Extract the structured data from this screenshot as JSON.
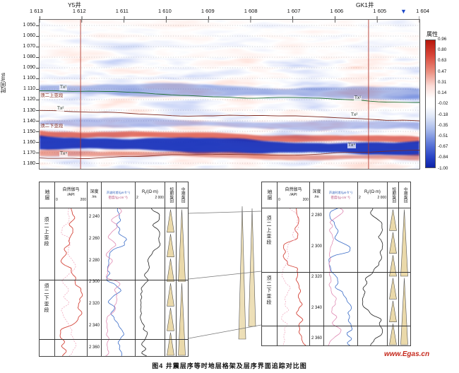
{
  "figure": {
    "caption": "图4  井震层序等时地层格架及层序界面追踪对比图",
    "watermark": "www.Egas.cn"
  },
  "colors": {
    "positive_red": "#d8402e",
    "negative_blue": "#0c27b8",
    "well_line": "#b03025",
    "horizon_green": "#1d6e32",
    "horizon_red": "#7e2a20",
    "cycle_fill": "#ead9aa",
    "watermark_red": "#c5281c"
  },
  "seismic": {
    "wells": [
      {
        "name": "Y5井"
      },
      {
        "name": "GK1井"
      }
    ],
    "top_marker_icon": "▼",
    "trace_labels": [
      "1 613",
      "1 612",
      "1 611",
      "1 610",
      "1 609",
      "1 608",
      "1 607",
      "1 606",
      "1 605",
      "1 604"
    ],
    "time_axis_label": "时间/ms",
    "time_ticks": [
      "1 050",
      "1 060",
      "1 070",
      "1 080",
      "1 090",
      "1 100",
      "1 110",
      "1 120",
      "1 130",
      "1 140",
      "1 150",
      "1 160",
      "1 170",
      "1 180"
    ],
    "horizon_labels_left": [
      "Tx¹",
      "须二上亚段",
      "Tx²",
      "须二下亚段",
      "Tx⁴"
    ],
    "horizon_labels_right": [
      "Tx¹",
      "Tx²",
      "Tx⁴"
    ],
    "colorbar": {
      "title": "属性",
      "ticks": [
        "0.96",
        "0.80",
        "0.63",
        "0.47",
        "0.31",
        "0.14",
        "-0.02",
        "-0.18",
        "-0.35",
        "-0.51",
        "-0.67",
        "-0.84",
        "-1.00"
      ]
    }
  },
  "log_panels": [
    {
      "well": "Y5",
      "strata_header": "地层",
      "strata": [
        "须二上亚段",
        "须二下亚段"
      ],
      "gr": {
        "title": "自然伽马",
        "unit": "/API",
        "min": "0",
        "max": "200"
      },
      "depth": {
        "title": "深度",
        "unit": "/m",
        "ticks": [
          "2 240",
          "2 260",
          "2 280",
          "2 300",
          "2 320",
          "2 340",
          "2 360"
        ]
      },
      "sonic": {
        "line1": "声波时差/(μs·ft⁻¹)",
        "line2": "密度/(g·cm⁻³)"
      },
      "rt": {
        "sym": "R",
        "sub": "t",
        "rest": "/(Ω·m)",
        "min": "2",
        "max": "2 000"
      },
      "short_cycle": "短期旋回",
      "medium_cycle": "中期旋回"
    },
    {
      "well": "GK1",
      "strata_header": "地层",
      "strata": [
        "须二上亚段",
        "须二下亚段"
      ],
      "gr": {
        "title": "自然伽马",
        "unit": "/API",
        "min": "0",
        "max": "200"
      },
      "depth": {
        "title": "深度",
        "unit": "/m",
        "ticks": [
          "2 280",
          "2 300",
          "2 320",
          "2 340",
          "2 360"
        ]
      },
      "sonic": {
        "line1": "声波时差/(μs·ft⁻¹)",
        "line2": "密度/(g·cm⁻³)"
      },
      "rt": {
        "sym": "R",
        "sub": "t",
        "rest": "/(Ω·m)",
        "min": "2",
        "max": "2 000"
      },
      "short_cycle": "短期旋回",
      "medium_cycle": "中期旋回"
    }
  ],
  "chart_data": [
    {
      "type": "heatmap",
      "title": "井震层序等时地层格架地震属性剖面",
      "x_tick_labels": [
        "1 613",
        "1 612",
        "1 611",
        "1 610",
        "1 609",
        "1 608",
        "1 607",
        "1 606",
        "1 605",
        "1 604"
      ],
      "ylabel": "时间/ms",
      "y_ticks": [
        1050,
        1060,
        1070,
        1080,
        1090,
        1100,
        1110,
        1120,
        1130,
        1140,
        1150,
        1160,
        1170,
        1180
      ],
      "ylim": [
        1050,
        1180
      ],
      "wells": [
        {
          "name": "Y5井",
          "x_fraction": 0.108
        },
        {
          "name": "GK1井",
          "x_fraction": 0.866
        }
      ],
      "horizons": [
        {
          "label": "Tx¹",
          "time_ms_left": 1111,
          "time_ms_right": 1123
        },
        {
          "label": "Tx²",
          "time_ms_left": 1133,
          "time_ms_right": 1141
        },
        {
          "label": "Tx⁴",
          "time_ms_left": 1174,
          "time_ms_right": 1167
        }
      ],
      "zones": [
        "须二上亚段",
        "须二下亚段"
      ],
      "colorbar": {
        "title": "属性",
        "range": [
          -1.0,
          0.96
        ],
        "ticks": [
          0.96,
          0.8,
          0.63,
          0.47,
          0.31,
          0.14,
          -0.02,
          -0.18,
          -0.35,
          -0.51,
          -0.67,
          -0.84,
          -1.0
        ],
        "palette": "red-white-blue"
      },
      "grid": true,
      "legend_position": "right"
    },
    {
      "type": "line",
      "title": "Y5井测井曲线",
      "tracks": [
        {
          "name": "自然伽马",
          "unit": "API",
          "range": [
            0,
            200
          ]
        },
        {
          "name": "声波时差",
          "unit": "μs·ft⁻¹"
        },
        {
          "name": "密度",
          "unit": "g·cm⁻³"
        },
        {
          "name": "Rt",
          "unit": "Ω·m",
          "range": [
            2,
            2000
          ]
        }
      ],
      "depth_ticks_m": [
        2240,
        2260,
        2280,
        2300,
        2320,
        2340,
        2360
      ],
      "zones": [
        "须二上亚段",
        "须二下亚段"
      ],
      "cycle_columns": [
        "短期旋回",
        "中期旋回"
      ]
    },
    {
      "type": "line",
      "title": "GK1井测井曲线",
      "tracks": [
        {
          "name": "自然伽马",
          "unit": "API",
          "range": [
            0,
            200
          ]
        },
        {
          "name": "声波时差",
          "unit": "μs·ft⁻¹"
        },
        {
          "name": "密度",
          "unit": "g·cm⁻³"
        },
        {
          "name": "Rt",
          "unit": "Ω·m",
          "range": [
            2,
            2000
          ]
        }
      ],
      "depth_ticks_m": [
        2280,
        2300,
        2320,
        2340,
        2360
      ],
      "zones": [
        "须二上亚段",
        "须二下亚段"
      ],
      "cycle_columns": [
        "短期旋回",
        "中期旋回"
      ]
    }
  ]
}
